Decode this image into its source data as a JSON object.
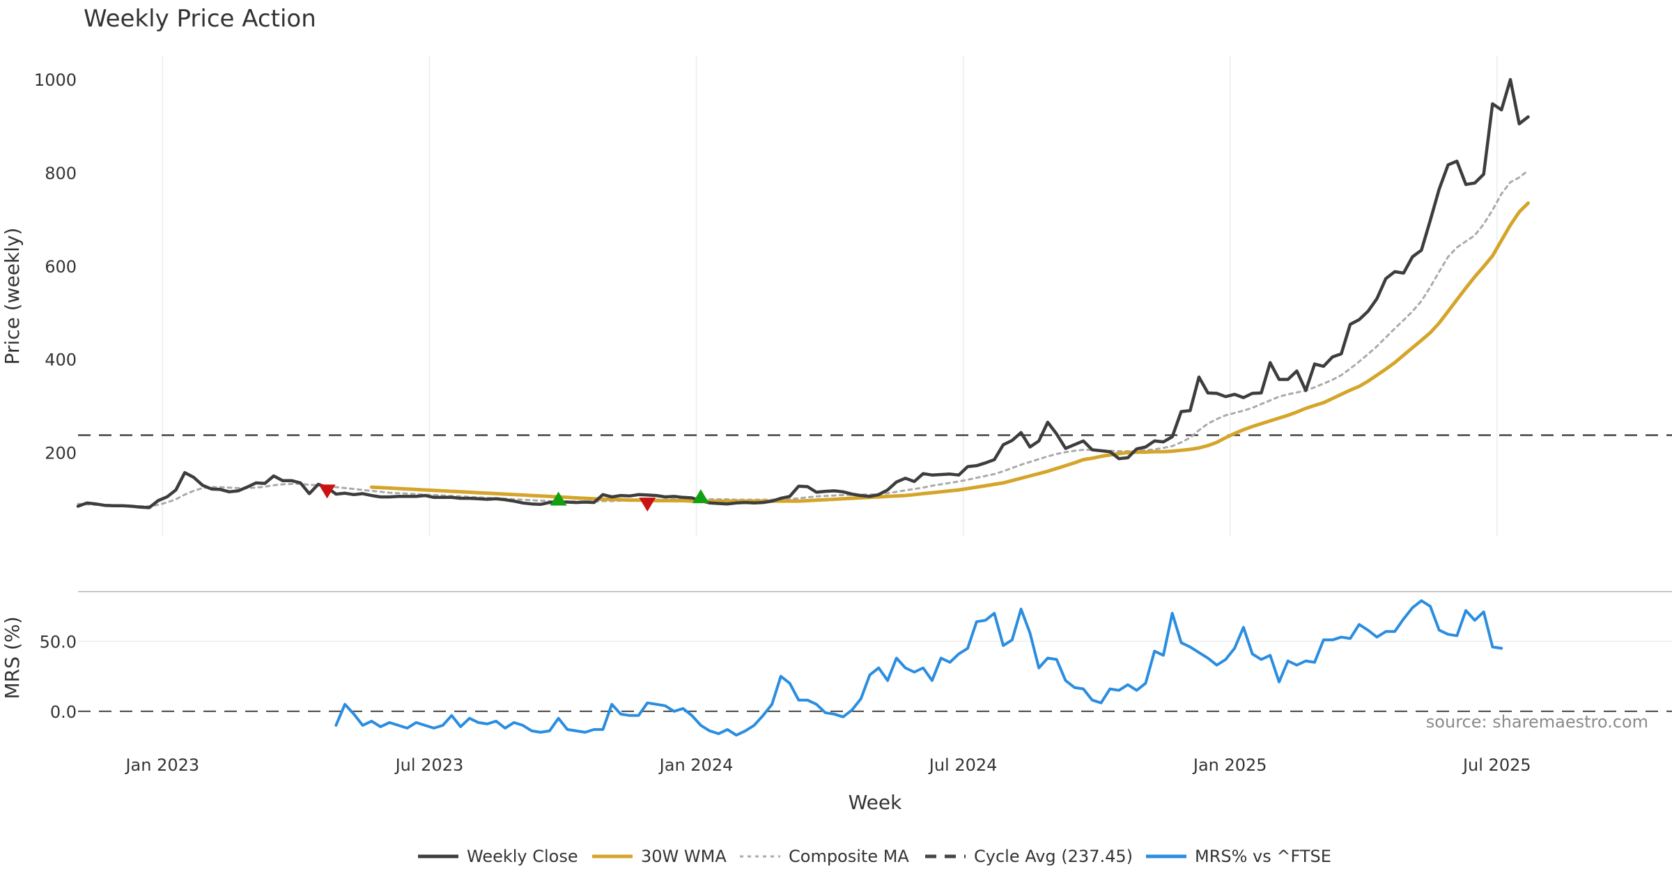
{
  "chart_data": {
    "type": "line",
    "title": "Weekly Price Action",
    "source": "source: sharemaestro.com",
    "xlabel": "Week",
    "x_ticks": [
      "Jan 2023",
      "Jul 2023",
      "Jan 2024",
      "Jul 2024",
      "Jan 2025",
      "Jul 2025"
    ],
    "x_range_weeks": [
      0,
      180
    ],
    "x_tick_weeks": [
      9.5,
      39.5,
      69.5,
      99.5,
      129.5,
      159.5
    ],
    "price_panel": {
      "ylabel": "Price (weekly)",
      "ylim": [
        20,
        1060
      ],
      "yticks": [
        200,
        400,
        600,
        800,
        1000
      ],
      "ytick_labels": [
        "200",
        "400",
        "600",
        "800",
        "1000"
      ],
      "grid": "vertical"
    },
    "mrs_panel": {
      "ylabel": "MRS (%)",
      "ylim": [
        -22,
        85
      ],
      "yticks": [
        0,
        50
      ],
      "ytick_labels": [
        "0.0",
        "50.0"
      ]
    },
    "cycle_avg": 237.45,
    "series": [
      {
        "name": "Weekly Close",
        "color": "#3d3d3d",
        "panel": "price",
        "start_week": 0,
        "values": [
          85,
          92,
          90,
          87,
          86,
          86,
          85,
          83,
          82,
          97,
          105,
          120,
          157,
          147,
          130,
          122,
          121,
          116,
          118,
          126,
          135,
          134,
          150,
          140,
          140,
          135,
          112,
          132,
          125,
          111,
          113,
          110,
          112,
          108,
          105,
          105,
          106,
          106,
          106,
          108,
          104,
          104,
          104,
          102,
          102,
          101,
          100,
          101,
          99,
          96,
          92,
          90,
          89,
          93,
          94,
          94,
          93,
          94,
          93,
          110,
          105,
          108,
          107,
          110,
          109,
          108,
          105,
          106,
          104,
          103,
          97,
          92,
          91,
          90,
          92,
          93,
          92,
          93,
          96,
          102,
          106,
          128,
          127,
          115,
          117,
          118,
          116,
          111,
          108,
          106,
          110,
          120,
          137,
          145,
          138,
          155,
          152,
          153,
          154,
          152,
          170,
          172,
          178,
          185,
          217,
          226,
          243,
          212,
          225,
          265,
          240,
          209,
          217,
          225,
          206,
          204,
          202,
          187,
          189,
          208,
          212,
          225,
          223,
          234,
          288,
          290,
          362,
          328,
          327,
          320,
          325,
          318,
          327,
          328,
          393,
          357,
          357,
          375,
          333,
          390,
          385,
          405,
          412,
          475,
          485,
          503,
          530,
          573,
          588,
          585,
          620,
          634,
          698,
          765,
          817,
          825,
          775,
          778,
          797,
          948,
          935,
          1000,
          905,
          920
        ]
      },
      {
        "name": "30W WMA",
        "color": "#d4a52a",
        "panel": "price",
        "start_week": 33,
        "values": [
          126,
          125,
          124,
          123,
          122,
          121,
          120,
          119,
          118,
          117,
          116,
          115,
          114,
          113,
          112,
          111,
          110,
          109,
          108,
          107,
          106,
          105,
          104,
          103,
          102,
          101,
          100,
          100,
          99,
          98,
          98,
          98,
          97,
          97,
          97,
          97,
          96,
          96,
          96,
          96,
          96,
          96,
          96,
          96,
          96,
          96,
          96,
          96,
          96,
          97,
          98,
          99,
          100,
          101,
          102,
          103,
          104,
          105,
          106,
          107,
          108,
          110,
          112,
          114,
          116,
          118,
          120,
          123,
          126,
          129,
          132,
          135,
          140,
          145,
          150,
          155,
          160,
          166,
          172,
          178,
          185,
          188,
          192,
          195,
          198,
          200,
          201,
          201,
          202,
          202,
          203,
          205,
          207,
          210,
          215,
          222,
          232,
          241,
          249,
          256,
          262,
          268,
          274,
          280,
          287,
          295,
          301,
          307,
          316,
          325,
          334,
          342,
          353,
          366,
          379,
          393,
          409,
          425,
          441,
          457,
          478,
          503,
          528,
          553,
          577,
          599,
          622,
          655,
          688,
          716,
          735
        ]
      },
      {
        "name": "Composite MA",
        "color": "#aaaaaa",
        "panel": "price",
        "start_week": 0,
        "values": [
          90,
          89,
          88,
          88,
          87,
          86,
          86,
          85,
          85,
          88,
          93,
          100,
          110,
          118,
          124,
          126,
          126,
          125,
          124,
          124,
          125,
          127,
          130,
          132,
          133,
          133,
          131,
          130,
          128,
          126,
          124,
          122,
          120,
          118,
          116,
          114,
          113,
          112,
          111,
          110,
          109,
          108,
          107,
          106,
          105,
          104,
          103,
          102,
          101,
          100,
          99,
          98,
          97,
          96,
          95,
          95,
          95,
          95,
          95,
          96,
          96,
          97,
          97,
          98,
          98,
          99,
          99,
          100,
          100,
          100,
          100,
          100,
          100,
          100,
          99,
          99,
          99,
          99,
          99,
          100,
          100,
          102,
          104,
          106,
          107,
          108,
          109,
          109,
          110,
          110,
          111,
          113,
          116,
          119,
          122,
          125,
          129,
          132,
          135,
          138,
          142,
          146,
          150,
          154,
          160,
          167,
          174,
          180,
          186,
          192,
          197,
          201,
          204,
          206,
          206,
          205,
          204,
          203,
          203,
          204,
          205,
          207,
          210,
          214,
          222,
          232,
          248,
          262,
          272,
          280,
          285,
          290,
          296,
          304,
          312,
          320,
          325,
          329,
          333,
          340,
          348,
          356,
          366,
          380,
          395,
          411,
          428,
          447,
          466,
          484,
          503,
          525,
          555,
          588,
          620,
          640,
          653,
          666,
          690,
          720,
          755,
          780,
          790,
          805
        ]
      },
      {
        "name": "MRS% vs ^FTSE",
        "color": "#2a8de0",
        "panel": "mrs",
        "start_week": 29,
        "values": [
          -10,
          5,
          -2,
          -10,
          -7,
          -11,
          -8,
          -10,
          -12,
          -8,
          -10,
          -12,
          -10,
          -3,
          -11,
          -5,
          -8,
          -9,
          -7,
          -12,
          -8,
          -10,
          -14,
          -15,
          -14,
          -5,
          -13,
          -14,
          -15,
          -13,
          -13,
          5,
          -2,
          -3,
          -3,
          6,
          5,
          4,
          0,
          2,
          -3,
          -10,
          -14,
          -16,
          -13,
          -17,
          -14,
          -10,
          -3,
          5,
          25,
          20,
          8,
          8,
          5,
          -1,
          -2,
          -4,
          1,
          9,
          26,
          31,
          22,
          38,
          31,
          28,
          31,
          22,
          38,
          35,
          41,
          45,
          64,
          65,
          70,
          47,
          51,
          73,
          56,
          31,
          38,
          37,
          22,
          17,
          16,
          8,
          6,
          16,
          15,
          19,
          15,
          20,
          43,
          40,
          70,
          49,
          46,
          42,
          38,
          33,
          37,
          45,
          60,
          41,
          37,
          40,
          21,
          36,
          33,
          36,
          35,
          51,
          51,
          53,
          52,
          62,
          58,
          53,
          57,
          57,
          66,
          74,
          79,
          75,
          58,
          55,
          54,
          72,
          65,
          71,
          46,
          45
        ]
      }
    ],
    "signals": [
      {
        "type": "sell",
        "week": 28,
        "value": 118,
        "color": "#cc1111"
      },
      {
        "type": "buy",
        "week": 54,
        "value": 100,
        "color": "#11a011"
      },
      {
        "type": "sell",
        "week": 64,
        "value": 90,
        "color": "#cc1111"
      },
      {
        "type": "buy",
        "week": 70,
        "value": 105,
        "color": "#11a011"
      }
    ],
    "legend": {
      "placement": "bottom-center",
      "entries": [
        {
          "label": "Weekly Close",
          "color": "#3d3d3d",
          "style": "solid"
        },
        {
          "label": "30W WMA",
          "color": "#d4a52a",
          "style": "solid"
        },
        {
          "label": "Composite MA",
          "color": "#aaaaaa",
          "style": "dotted"
        },
        {
          "label": "Cycle Avg (237.45)",
          "color": "#444444",
          "style": "dashed"
        },
        {
          "label": "MRS% vs ^FTSE",
          "color": "#2a8de0",
          "style": "solid"
        }
      ]
    }
  }
}
